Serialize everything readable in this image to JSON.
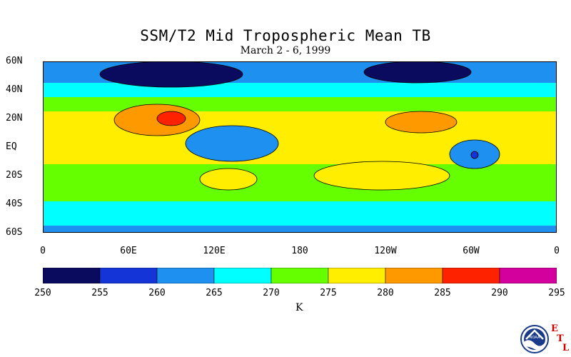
{
  "title": "SSM/T2 Mid Tropospheric Mean TB",
  "subtitle": "March 2 - 6, 1999",
  "lat_labels": [
    "60N",
    "40N",
    "20N",
    "EQ",
    "20S",
    "40S",
    "60S"
  ],
  "lon_labels": [
    "0",
    "60E",
    "120E",
    "180",
    "120W",
    "60W",
    "0"
  ],
  "colorbar": {
    "ticks": [
      "250",
      "255",
      "260",
      "265",
      "270",
      "275",
      "280",
      "285",
      "290",
      "295"
    ],
    "unit": "K",
    "colors": [
      "#0a0a5e",
      "#1434d8",
      "#1e90ef",
      "#00ffff",
      "#66ff00",
      "#ffee00",
      "#ff9900",
      "#ff2200",
      "#d4009e"
    ]
  },
  "logo": {
    "agency": "NOAA",
    "letters": [
      "E",
      "T",
      "L"
    ]
  },
  "chart_data": {
    "type": "heatmap",
    "title": "SSM/T2 Mid Tropospheric Mean TB",
    "subtitle": "March 2 - 6, 1999",
    "xlim_deg_east": [
      0,
      360
    ],
    "ylim_deg_lat": [
      -60,
      60
    ],
    "unit": "K",
    "levels": [
      250,
      255,
      260,
      265,
      270,
      275,
      280,
      285,
      290,
      295
    ],
    "zonal_bands": [
      {
        "lat": [
          45,
          60
        ],
        "value_K": 262
      },
      {
        "lat": [
          35,
          45
        ],
        "value_K": 266
      },
      {
        "lat": [
          25,
          35
        ],
        "value_K": 272
      },
      {
        "lat": [
          -12,
          25
        ],
        "value_K": 277
      },
      {
        "lat": [
          -28,
          -12
        ],
        "value_K": 274
      },
      {
        "lat": [
          -38,
          -28
        ],
        "value_K": 272
      },
      {
        "lat": [
          -48,
          -38
        ],
        "value_K": 268
      },
      {
        "lat": [
          -55,
          -48
        ],
        "value_K": 265
      },
      {
        "lat": [
          -60,
          -55
        ],
        "value_K": 260
      }
    ],
    "features": [
      {
        "name": "Eurasian cold core",
        "lon": [
          40,
          140
        ],
        "lat": [
          42,
          60
        ],
        "value_K": 252
      },
      {
        "name": "North American cold core",
        "lon": [
          225,
          300
        ],
        "lat": [
          45,
          60
        ],
        "value_K": 253
      },
      {
        "name": "Maritime continent cool region",
        "lon": [
          100,
          165
        ],
        "lat": [
          -10,
          15
        ],
        "value_K": 262
      },
      {
        "name": "Indian warm maximum",
        "lon": [
          50,
          110
        ],
        "lat": [
          8,
          30
        ],
        "value_K": 283
      },
      {
        "name": "Bay of Bengal hot spot",
        "lon": [
          80,
          100
        ],
        "lat": [
          15,
          25
        ],
        "value_K": 287
      },
      {
        "name": "Central American warm core",
        "lon": [
          240,
          290
        ],
        "lat": [
          10,
          25
        ],
        "value_K": 281
      },
      {
        "name": "Amazon cool cell",
        "lon": [
          285,
          320
        ],
        "lat": [
          -15,
          5
        ],
        "value_K": 263
      },
      {
        "name": "Amazon minimum",
        "lon": [
          300,
          305
        ],
        "lat": [
          -8,
          -3
        ],
        "value_K": 258
      },
      {
        "name": "Australian warm region",
        "lon": [
          110,
          150
        ],
        "lat": [
          -30,
          -15
        ],
        "value_K": 279
      },
      {
        "name": "South Pacific warm belt",
        "lon": [
          190,
          285
        ],
        "lat": [
          -30,
          -10
        ],
        "value_K": 278
      }
    ]
  }
}
